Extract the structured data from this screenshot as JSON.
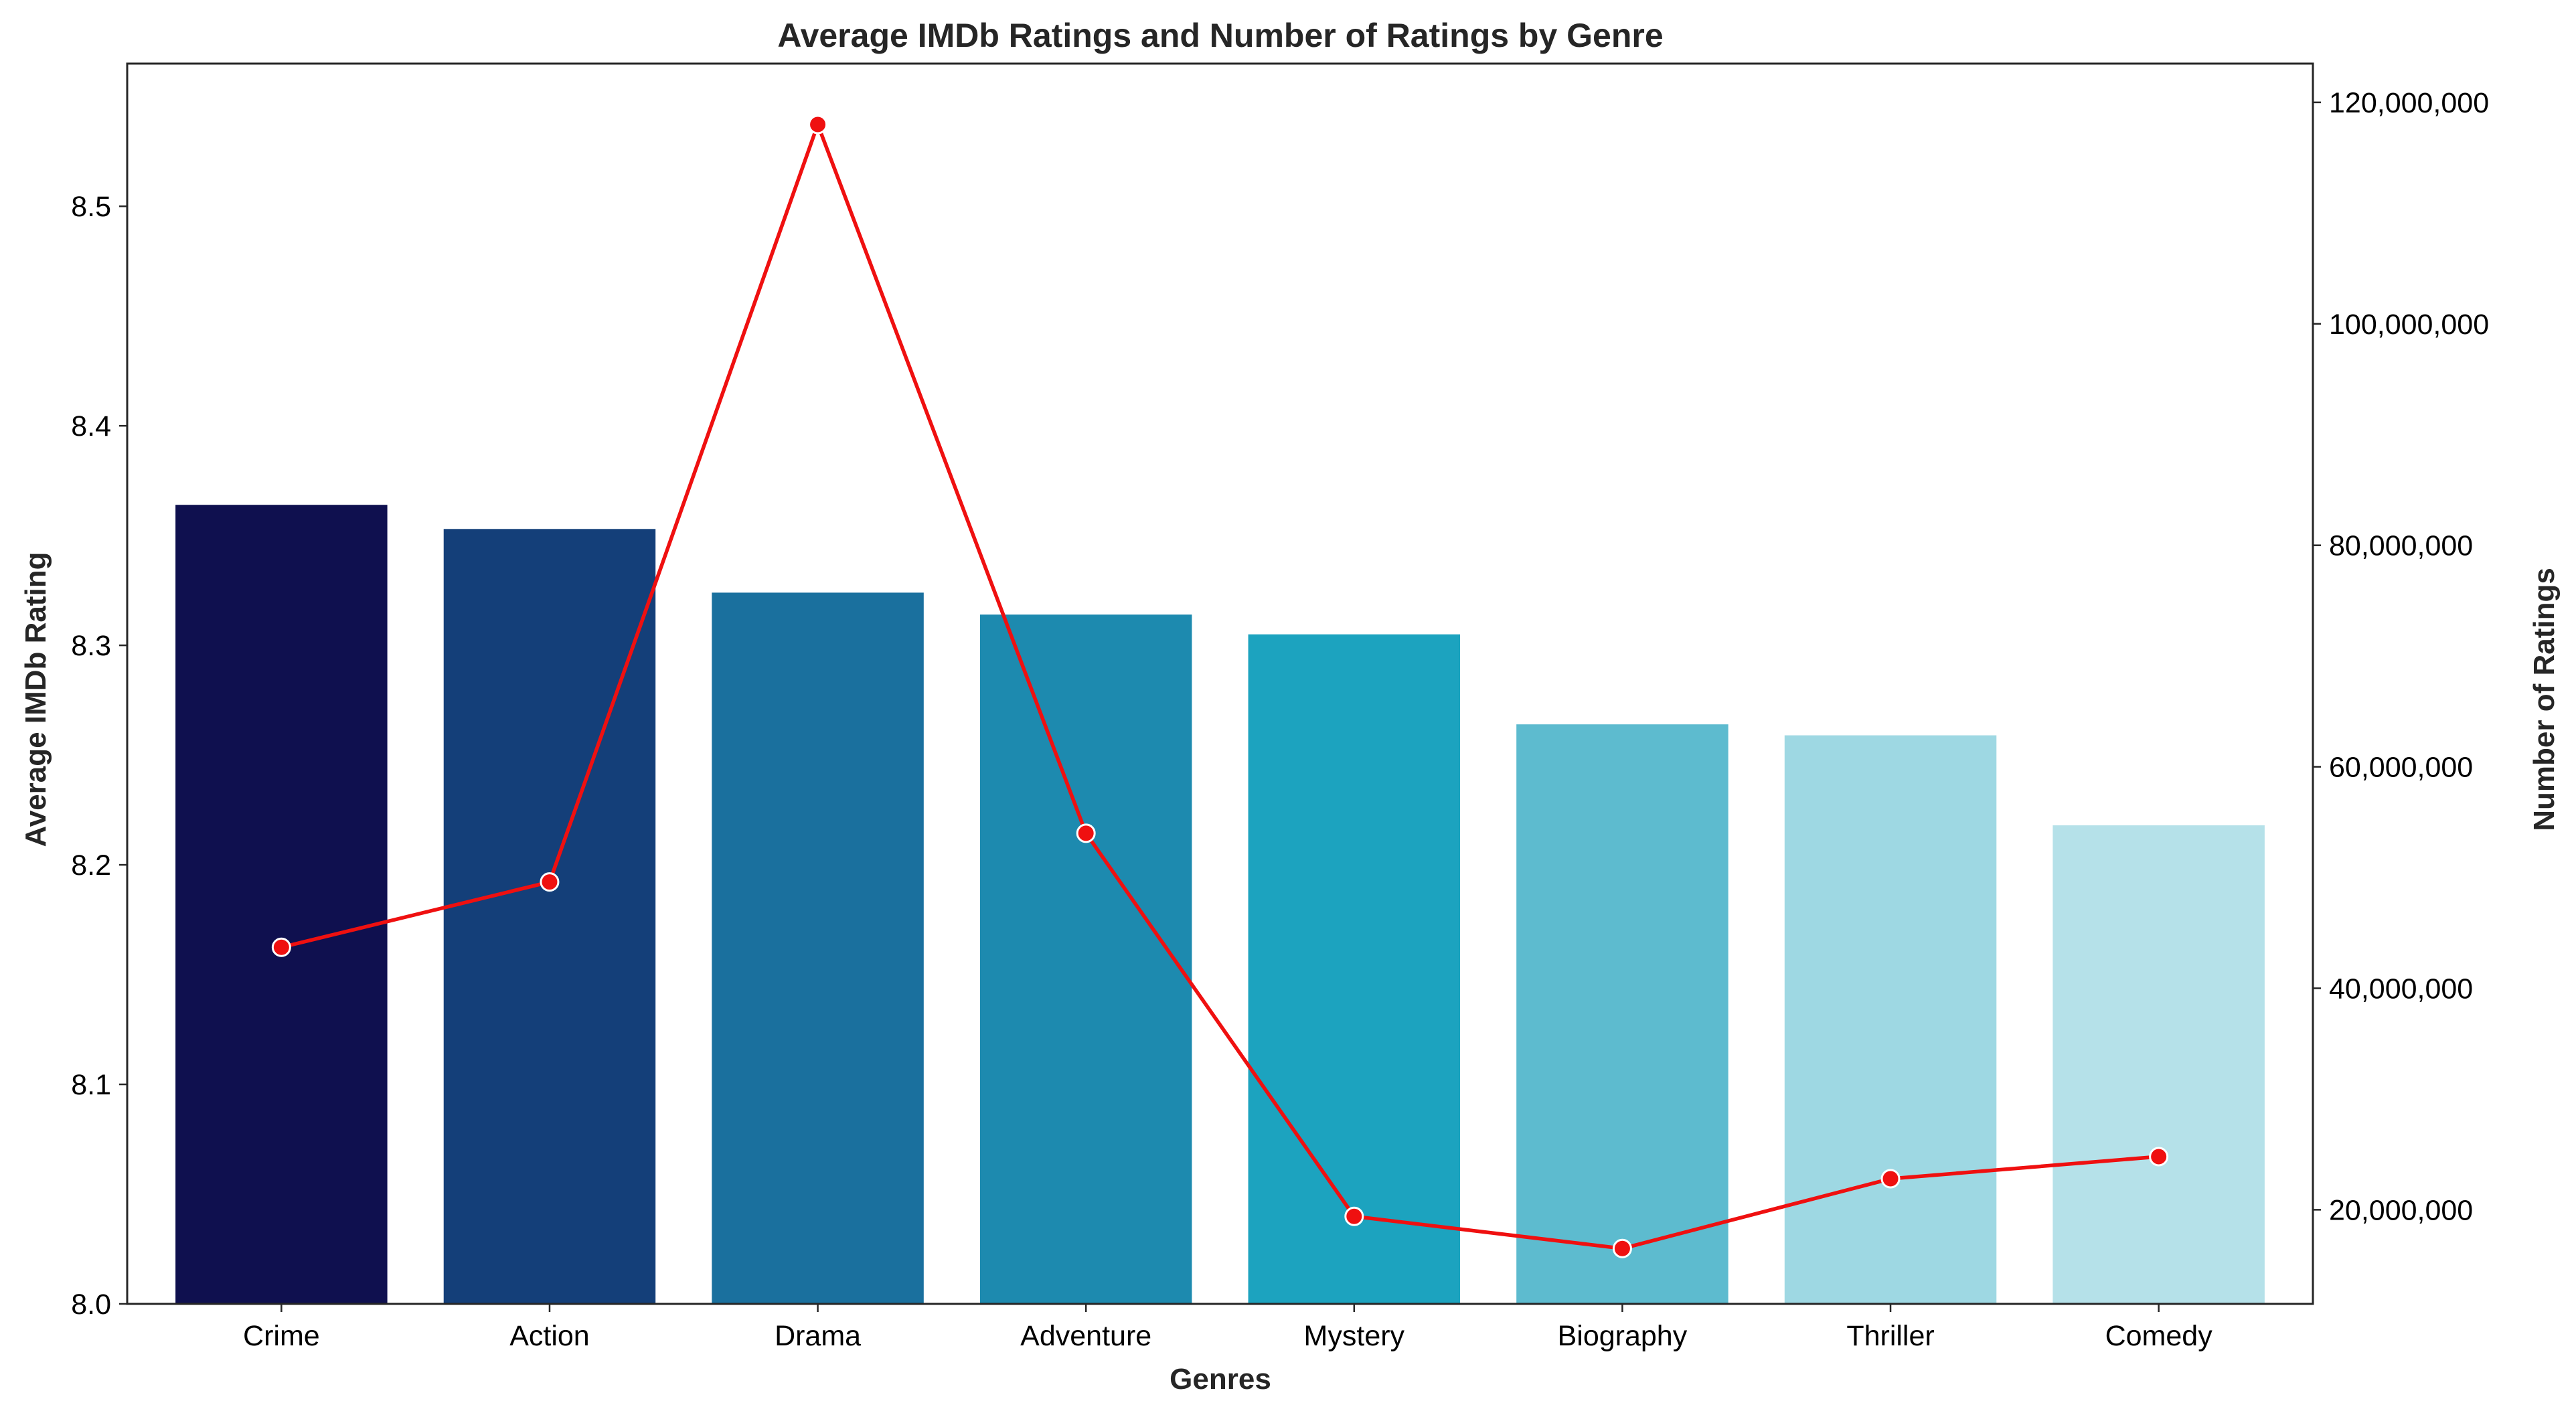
{
  "chart_data": {
    "type": "bar",
    "title": "Average IMDb Ratings and Number of Ratings by Genre",
    "xlabel": "Genres",
    "ylabel": "Average IMDb Rating",
    "y2label": "Number of Ratings",
    "categories": [
      "Crime",
      "Action",
      "Drama",
      "Adventure",
      "Mystery",
      "Biography",
      "Thriller",
      "Comedy"
    ],
    "ylim": [
      8.0,
      8.565
    ],
    "y2lim": [
      11500000,
      123500000
    ],
    "yticks": [
      "8.0",
      "8.1",
      "8.2",
      "8.3",
      "8.4",
      "8.5"
    ],
    "ytick_values": [
      8.0,
      8.1,
      8.2,
      8.3,
      8.4,
      8.5
    ],
    "y2ticks": [
      "20,000,000",
      "40,000,000",
      "60,000,000",
      "80,000,000",
      "100,000,000",
      "120,000,000"
    ],
    "y2tick_values": [
      20000000,
      40000000,
      60000000,
      80000000,
      100000000,
      120000000
    ],
    "grid": false,
    "series": [
      {
        "type": "bar",
        "axis": "left",
        "values": [
          8.364,
          8.353,
          8.324,
          8.314,
          8.305,
          8.264,
          8.259,
          8.218
        ],
        "colors": [
          "#0f104f",
          "#143f79",
          "#1a709e",
          "#1d8aaf",
          "#1ca3bf",
          "#5dbbcf",
          "#9ed8e3",
          "#b5e1e9"
        ]
      },
      {
        "type": "line",
        "axis": "right",
        "values": [
          43700000,
          49600000,
          118000000,
          54000000,
          19400000,
          16500000,
          22800000,
          24800000
        ],
        "color": "#ef1010",
        "marker_edge": "#ffffff"
      }
    ]
  }
}
